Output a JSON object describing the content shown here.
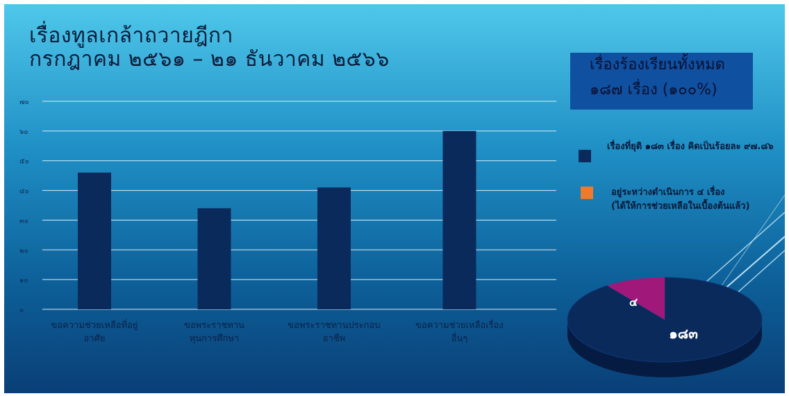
{
  "title": {
    "line1": "เรื่องทูลเกล้าถวายฎีกา",
    "line2": "กรกฎาคม ๒๕๖๑ – ๒๑ ธันวาคม ๒๕๖๖"
  },
  "colors": {
    "bar": "#0a2a5c",
    "pie_main": "#0a2a5c",
    "pie_small": "#a0197a",
    "legend_done": "#0a2a5c",
    "legend_pending": "#f07a2a",
    "gridline": "#d8eef8"
  },
  "chart_data": [
    {
      "type": "bar",
      "categories": [
        [
          "ขอความช่วยเหลือที่อยู่",
          "อาศัย"
        ],
        [
          "ขอพระราชทาน",
          "ทุนการศึกษา"
        ],
        [
          "ขอพระราชทานประกอบ",
          "อาชีพ"
        ],
        [
          "ขอความช่วยเหลือเรื่อง",
          "อื่นๆ"
        ]
      ],
      "values": [
        46,
        34,
        41,
        60
      ],
      "ylim": [
        0,
        70
      ],
      "yticks": [
        0,
        10,
        20,
        30,
        40,
        50,
        60,
        70
      ],
      "ytick_labels": [
        "๐",
        "๑๐",
        "๒๐",
        "๓๐",
        "๔๐",
        "๕๐",
        "๖๐",
        "๗๐"
      ],
      "grid": true
    },
    {
      "type": "pie",
      "slices": [
        {
          "label": "๑๘๓",
          "value": 183
        },
        {
          "label": "๔",
          "value": 4
        }
      ],
      "total_box": {
        "line1": "เรื่องร้องเรียนทั้งหมด",
        "line2": "๑๘๗ เรื่อง (๑๐๐%)"
      },
      "legend": [
        {
          "text": "เรื่องที่ยุติ ๑๘๓ เรื่อง คิดเป็นร้อยละ ๙๗.๘๖"
        },
        {
          "text": "อยู่ระหว่างดำเนินการ ๔ เรื่อง",
          "text2": "(ได้ให้การช่วยเหลือในเบื้องต้นแล้ว)"
        }
      ]
    }
  ]
}
